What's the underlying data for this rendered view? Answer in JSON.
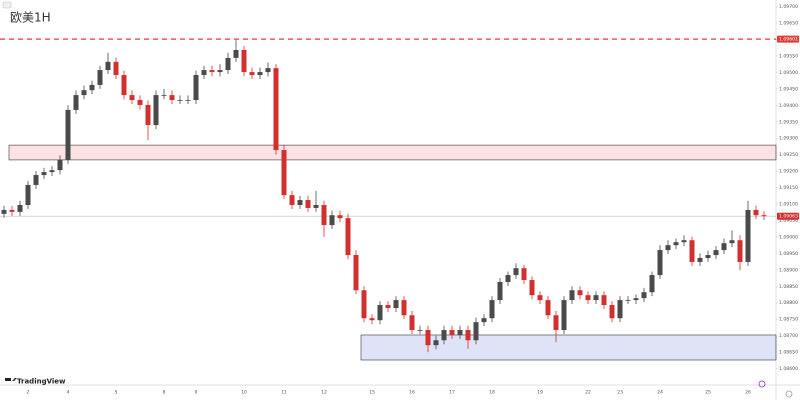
{
  "chart_data": {
    "type": "candlestick",
    "title": "欧美1H",
    "logo": "TradingView",
    "x": [
      null,
      null,
      null,
      "2",
      null,
      null,
      null,
      null,
      "4",
      null,
      null,
      null,
      null,
      null,
      "5",
      null,
      null,
      null,
      null,
      null,
      "8",
      null,
      null,
      null,
      "9",
      null,
      null,
      null,
      null,
      null,
      "10",
      null,
      null,
      null,
      null,
      "11",
      null,
      null,
      null,
      null,
      "12",
      null,
      null,
      null,
      null,
      null,
      "15",
      null,
      null,
      null,
      null,
      "16",
      null,
      null,
      null,
      null,
      "17",
      null,
      null,
      null,
      null,
      "18",
      null,
      null,
      null,
      null,
      null,
      "19",
      null,
      null,
      null,
      null,
      null,
      "22",
      null,
      null,
      null,
      "23",
      null,
      null,
      null,
      null,
      "24",
      null,
      null,
      null,
      null,
      null,
      "25",
      null,
      null,
      null,
      null,
      "26",
      null,
      null
    ],
    "open": [
      1.0907,
      1.09082,
      1.09076,
      1.09097,
      1.09158,
      1.09188,
      1.09197,
      1.09203,
      1.09234,
      1.09386,
      1.09431,
      1.09446,
      1.09462,
      1.09507,
      1.09532,
      1.09492,
      1.09431,
      1.09416,
      1.09401,
      1.0934,
      1.09431,
      1.09431,
      1.09416,
      1.09416,
      1.09416,
      1.09492,
      1.09507,
      1.09501,
      1.09507,
      1.09544,
      1.09568,
      1.09501,
      1.09492,
      1.09501,
      1.09513,
      1.09264,
      1.09127,
      1.09097,
      1.09112,
      1.09088,
      1.09097,
      1.09036,
      1.09066,
      1.09057,
      1.08945,
      1.08838,
      1.08753,
      1.08747,
      1.08793,
      1.08784,
      1.08808,
      1.08762,
      1.08717,
      1.08717,
      1.08671,
      1.08686,
      1.08717,
      1.08702,
      1.08717,
      1.08686,
      1.08741,
      1.08753,
      1.08808,
      1.08863,
      1.08884,
      1.08905,
      1.08869,
      1.08823,
      1.08808,
      1.08762,
      1.08717,
      1.08808,
      1.08838,
      1.08823,
      1.08808,
      1.08823,
      1.08793,
      1.08753,
      1.08808,
      1.08808,
      1.08814,
      1.08832,
      1.08884,
      1.0896,
      1.08975,
      1.08984,
      1.0899,
      1.08924,
      1.08936,
      1.08945,
      1.0896,
      1.08981,
      1.0899,
      1.08924,
      1.09082,
      1.09066
    ],
    "high": [
      1.09095,
      1.09094,
      1.0911,
      1.0917,
      1.092,
      1.0921,
      1.09215,
      1.09248,
      1.094,
      1.09445,
      1.0946,
      1.09475,
      1.0952,
      1.0956,
      1.09545,
      1.09505,
      1.09445,
      1.0943,
      1.09415,
      1.09445,
      1.0945,
      1.09445,
      1.0943,
      1.0943,
      1.09505,
      1.0952,
      1.0952,
      1.09525,
      1.0956,
      1.09598,
      1.0958,
      1.09515,
      1.09515,
      1.0953,
      1.09525,
      1.0928,
      1.0914,
      1.09125,
      1.09125,
      1.0914,
      1.0911,
      1.0908,
      1.0908,
      1.0907,
      1.0896,
      1.0885,
      1.08765,
      1.08805,
      1.08805,
      1.0882,
      1.0882,
      1.08775,
      1.0873,
      1.0873,
      1.087,
      1.0873,
      1.0873,
      1.0873,
      1.0873,
      1.08755,
      1.08765,
      1.0882,
      1.08875,
      1.08895,
      1.0892,
      1.08915,
      1.0888,
      1.08835,
      1.0882,
      1.08775,
      1.0882,
      1.0885,
      1.0885,
      1.08835,
      1.08835,
      1.08835,
      1.08805,
      1.0882,
      1.0882,
      1.08825,
      1.08845,
      1.08895,
      1.08975,
      1.0899,
      1.08995,
      1.09005,
      1.09,
      1.0895,
      1.08958,
      1.08972,
      1.08995,
      1.0902,
      1.09005,
      1.0911,
      1.09095,
      1.09078
    ],
    "low": [
      1.09058,
      1.09064,
      1.09064,
      1.09085,
      1.09146,
      1.09176,
      1.09185,
      1.0919,
      1.09222,
      1.09374,
      1.09418,
      1.09434,
      1.0945,
      1.09495,
      1.0948,
      1.09418,
      1.09404,
      1.09388,
      1.09294,
      1.09328,
      1.09418,
      1.09404,
      1.09404,
      1.09404,
      1.09404,
      1.0948,
      1.09488,
      1.09488,
      1.09495,
      1.09532,
      1.09488,
      1.0948,
      1.0948,
      1.09488,
      1.0925,
      1.09115,
      1.09085,
      1.09085,
      1.09076,
      1.09076,
      1.09,
      1.09024,
      1.09045,
      1.08932,
      1.08826,
      1.08741,
      1.08735,
      1.08735,
      1.08772,
      1.08772,
      1.0875,
      1.08705,
      1.08705,
      1.0865,
      1.08659,
      1.08674,
      1.0869,
      1.0869,
      1.0866,
      1.08674,
      1.08729,
      1.08741,
      1.08796,
      1.08851,
      1.08872,
      1.08857,
      1.08811,
      1.08796,
      1.0875,
      1.0868,
      1.08705,
      1.08796,
      1.08811,
      1.08796,
      1.08796,
      1.08781,
      1.08741,
      1.08741,
      1.08796,
      1.08796,
      1.08802,
      1.0882,
      1.08872,
      1.08948,
      1.08963,
      1.08972,
      1.08912,
      1.08912,
      1.08924,
      1.08933,
      1.08948,
      1.08969,
      1.08899,
      1.08912,
      1.09054,
      1.09051
    ],
    "close": [
      1.09082,
      1.09076,
      1.09097,
      1.09158,
      1.09188,
      1.09197,
      1.09203,
      1.09234,
      1.09386,
      1.09431,
      1.09446,
      1.09462,
      1.09507,
      1.09532,
      1.09492,
      1.09431,
      1.09416,
      1.09401,
      1.0934,
      1.09431,
      1.09431,
      1.09416,
      1.09416,
      1.09416,
      1.09492,
      1.09507,
      1.09501,
      1.09507,
      1.09544,
      1.09568,
      1.09501,
      1.09492,
      1.09501,
      1.09513,
      1.09264,
      1.09127,
      1.09097,
      1.09112,
      1.09088,
      1.09097,
      1.09036,
      1.09066,
      1.09057,
      1.08945,
      1.08838,
      1.08753,
      1.08747,
      1.08793,
      1.08784,
      1.08808,
      1.08762,
      1.08717,
      1.08717,
      1.08671,
      1.08686,
      1.08717,
      1.08702,
      1.08717,
      1.08686,
      1.08741,
      1.08753,
      1.08808,
      1.08863,
      1.08884,
      1.08905,
      1.08869,
      1.08823,
      1.08808,
      1.08762,
      1.08717,
      1.08808,
      1.08838,
      1.08823,
      1.08808,
      1.08823,
      1.08793,
      1.08753,
      1.08808,
      1.08808,
      1.08814,
      1.08832,
      1.08884,
      1.0896,
      1.08975,
      1.08984,
      1.0899,
      1.08924,
      1.08936,
      1.08945,
      1.0896,
      1.08981,
      1.0899,
      1.08924,
      1.09082,
      1.09066,
      1.09063
    ],
    "up_color": "#4a4a4a",
    "down_color": "#d32f2f",
    "ylim": [
      1.0855,
      1.0972
    ],
    "yticks": [
      {
        "value": 1.097,
        "label": "1.09700"
      },
      {
        "value": 1.0965,
        "label": "1.09650"
      },
      {
        "value": 1.096,
        "label": "1.09600"
      },
      {
        "value": 1.0955,
        "label": "1.09550"
      },
      {
        "value": 1.095,
        "label": "1.09500"
      },
      {
        "value": 1.0945,
        "label": "1.09450"
      },
      {
        "value": 1.094,
        "label": "1.09400"
      },
      {
        "value": 1.0935,
        "label": "1.09350"
      },
      {
        "value": 1.093,
        "label": "1.09300"
      },
      {
        "value": 1.0925,
        "label": "1.09250"
      },
      {
        "value": 1.092,
        "label": "1.09200"
      },
      {
        "value": 1.0915,
        "label": "1.09150"
      },
      {
        "value": 1.091,
        "label": "1.09100"
      },
      {
        "value": 1.0905,
        "label": "1.09050"
      },
      {
        "value": 1.09,
        "label": "1.09000"
      },
      {
        "value": 1.0895,
        "label": "1.08950"
      },
      {
        "value": 1.089,
        "label": "1.08900"
      },
      {
        "value": 1.0885,
        "label": "1.08850"
      },
      {
        "value": 1.088,
        "label": "1.08800"
      },
      {
        "value": 1.0875,
        "label": "1.08750"
      },
      {
        "value": 1.087,
        "label": "1.08700"
      },
      {
        "value": 1.0865,
        "label": "1.08650"
      },
      {
        "value": 1.086,
        "label": "1.08600"
      }
    ],
    "grid": false,
    "levels": [
      {
        "value": 1.09601,
        "label": "1.09601",
        "color": "#e53935",
        "dashed": true
      },
      {
        "value": 1.09063,
        "label": "1.09063",
        "color": "#bdbdbd",
        "dashed": false
      }
    ],
    "zones": [
      {
        "from": 1,
        "low": 1.09234,
        "high": 1.09279,
        "color": "#f28b8b"
      },
      {
        "from": 45,
        "low": 1.08626,
        "high": 1.08702,
        "color": "#7b8fe0"
      }
    ]
  }
}
